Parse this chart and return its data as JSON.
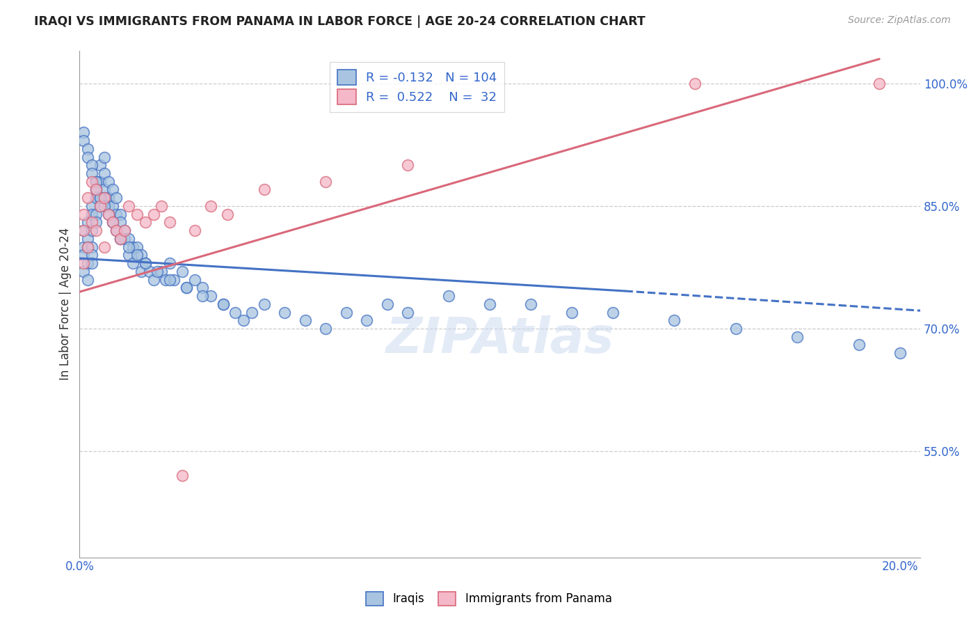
{
  "title": "IRAQI VS IMMIGRANTS FROM PANAMA IN LABOR FORCE | AGE 20-24 CORRELATION CHART",
  "source": "Source: ZipAtlas.com",
  "ylabel": "In Labor Force | Age 20-24",
  "xlim": [
    0.0,
    0.205
  ],
  "ylim": [
    0.42,
    1.04
  ],
  "ytick_labels": [
    "55.0%",
    "70.0%",
    "85.0%",
    "100.0%"
  ],
  "ytick_values": [
    0.55,
    0.7,
    0.85,
    1.0
  ],
  "legend_R_iraqis": "-0.132",
  "legend_N_iraqis": "104",
  "legend_R_panama": "0.522",
  "legend_N_panama": "32",
  "iraqis_color": "#a8c4e0",
  "panama_color": "#f4b8c8",
  "trend_iraqis_color": "#4472c4",
  "trend_panama_color": "#d9687a",
  "watermark": "ZIPAtlas",
  "iraqis_x": [
    0.001,
    0.001,
    0.001,
    0.001,
    0.002,
    0.002,
    0.002,
    0.002,
    0.002,
    0.003,
    0.003,
    0.003,
    0.003,
    0.003,
    0.003,
    0.004,
    0.004,
    0.004,
    0.004,
    0.004,
    0.005,
    0.005,
    0.005,
    0.005,
    0.006,
    0.006,
    0.006,
    0.006,
    0.007,
    0.007,
    0.007,
    0.008,
    0.008,
    0.008,
    0.009,
    0.009,
    0.01,
    0.01,
    0.01,
    0.011,
    0.011,
    0.012,
    0.012,
    0.013,
    0.013,
    0.014,
    0.015,
    0.015,
    0.016,
    0.017,
    0.018,
    0.02,
    0.021,
    0.022,
    0.023,
    0.025,
    0.026,
    0.028,
    0.03,
    0.032,
    0.035,
    0.038,
    0.04,
    0.045,
    0.05,
    0.055,
    0.06,
    0.065,
    0.07,
    0.075,
    0.08,
    0.09,
    0.1,
    0.11,
    0.12,
    0.13,
    0.145,
    0.16,
    0.175,
    0.19,
    0.2,
    0.001,
    0.001,
    0.002,
    0.002,
    0.003,
    0.003,
    0.004,
    0.004,
    0.005,
    0.006,
    0.007,
    0.008,
    0.009,
    0.01,
    0.012,
    0.014,
    0.016,
    0.019,
    0.022,
    0.026,
    0.03,
    0.035,
    0.042
  ],
  "iraqis_y": [
    0.82,
    0.8,
    0.79,
    0.77,
    0.83,
    0.81,
    0.8,
    0.78,
    0.76,
    0.85,
    0.84,
    0.82,
    0.8,
    0.79,
    0.78,
    0.88,
    0.87,
    0.86,
    0.84,
    0.83,
    0.9,
    0.88,
    0.86,
    0.85,
    0.91,
    0.89,
    0.87,
    0.86,
    0.88,
    0.86,
    0.85,
    0.87,
    0.85,
    0.83,
    0.86,
    0.84,
    0.84,
    0.83,
    0.81,
    0.82,
    0.81,
    0.81,
    0.79,
    0.8,
    0.78,
    0.8,
    0.79,
    0.77,
    0.78,
    0.77,
    0.76,
    0.77,
    0.76,
    0.78,
    0.76,
    0.77,
    0.75,
    0.76,
    0.75,
    0.74,
    0.73,
    0.72,
    0.71,
    0.73,
    0.72,
    0.71,
    0.7,
    0.72,
    0.71,
    0.73,
    0.72,
    0.74,
    0.73,
    0.73,
    0.72,
    0.72,
    0.71,
    0.7,
    0.69,
    0.68,
    0.67,
    0.94,
    0.93,
    0.92,
    0.91,
    0.9,
    0.89,
    0.88,
    0.87,
    0.86,
    0.85,
    0.84,
    0.83,
    0.82,
    0.81,
    0.8,
    0.79,
    0.78,
    0.77,
    0.76,
    0.75,
    0.74,
    0.73,
    0.72
  ],
  "panama_x": [
    0.001,
    0.001,
    0.001,
    0.002,
    0.002,
    0.003,
    0.003,
    0.004,
    0.004,
    0.005,
    0.006,
    0.006,
    0.007,
    0.008,
    0.009,
    0.01,
    0.011,
    0.012,
    0.014,
    0.016,
    0.018,
    0.02,
    0.022,
    0.025,
    0.028,
    0.032,
    0.036,
    0.045,
    0.06,
    0.08,
    0.15,
    0.195
  ],
  "panama_y": [
    0.84,
    0.82,
    0.78,
    0.86,
    0.8,
    0.88,
    0.83,
    0.87,
    0.82,
    0.85,
    0.86,
    0.8,
    0.84,
    0.83,
    0.82,
    0.81,
    0.82,
    0.85,
    0.84,
    0.83,
    0.84,
    0.85,
    0.83,
    0.52,
    0.82,
    0.85,
    0.84,
    0.87,
    0.88,
    0.9,
    1.0,
    1.0
  ],
  "trend_iraqis_x0": 0.0,
  "trend_iraqis_x1": 0.133,
  "trend_iraqis_y0": 0.786,
  "trend_iraqis_y1": 0.746,
  "trend_iraqis_xdash0": 0.133,
  "trend_iraqis_xdash1": 0.205,
  "trend_iraqis_ydash0": 0.746,
  "trend_iraqis_ydash1": 0.722,
  "trend_panama_x0": 0.0,
  "trend_panama_x1": 0.195,
  "trend_panama_y0": 0.745,
  "trend_panama_y1": 1.03
}
